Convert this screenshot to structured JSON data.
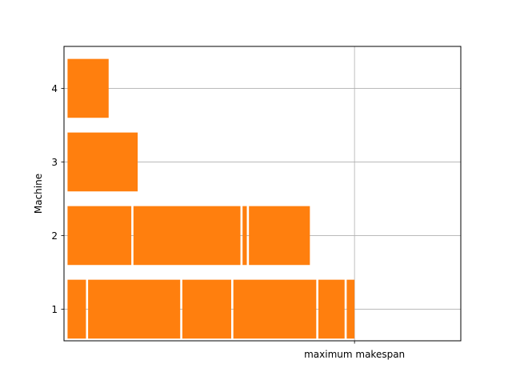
{
  "chart_data": {
    "type": "bar",
    "orientation": "horizontal",
    "chart_kind": "gantt",
    "ylabel": "Machine",
    "xlabel": "",
    "categories": [
      1,
      2,
      3,
      4
    ],
    "ylim": [
      0.57,
      4.57
    ],
    "xlim": [
      -0.5,
      55.5
    ],
    "grid": true,
    "bar_color": "#ff7f0e",
    "x_ticks": [
      {
        "value": 40.5,
        "label": "maximum makespan"
      }
    ],
    "y_ticks": [
      {
        "value": 1,
        "label": "1"
      },
      {
        "value": 2,
        "label": "2"
      },
      {
        "value": 3,
        "label": "3"
      },
      {
        "value": 4,
        "label": "4"
      }
    ],
    "bars": [
      {
        "machine": 1,
        "start": 0,
        "end": 2.6
      },
      {
        "machine": 1,
        "start": 2.9,
        "end": 15.9
      },
      {
        "machine": 1,
        "start": 16.2,
        "end": 23.1
      },
      {
        "machine": 1,
        "start": 23.4,
        "end": 35.1
      },
      {
        "machine": 1,
        "start": 35.4,
        "end": 39.1
      },
      {
        "machine": 1,
        "start": 39.4,
        "end": 40.5
      },
      {
        "machine": 2,
        "start": 0,
        "end": 9.0
      },
      {
        "machine": 2,
        "start": 9.3,
        "end": 24.4
      },
      {
        "machine": 2,
        "start": 24.7,
        "end": 25.3
      },
      {
        "machine": 2,
        "start": 25.6,
        "end": 34.2
      },
      {
        "machine": 3,
        "start": 0,
        "end": 9.9
      },
      {
        "machine": 4,
        "start": 0,
        "end": 5.8
      }
    ]
  }
}
